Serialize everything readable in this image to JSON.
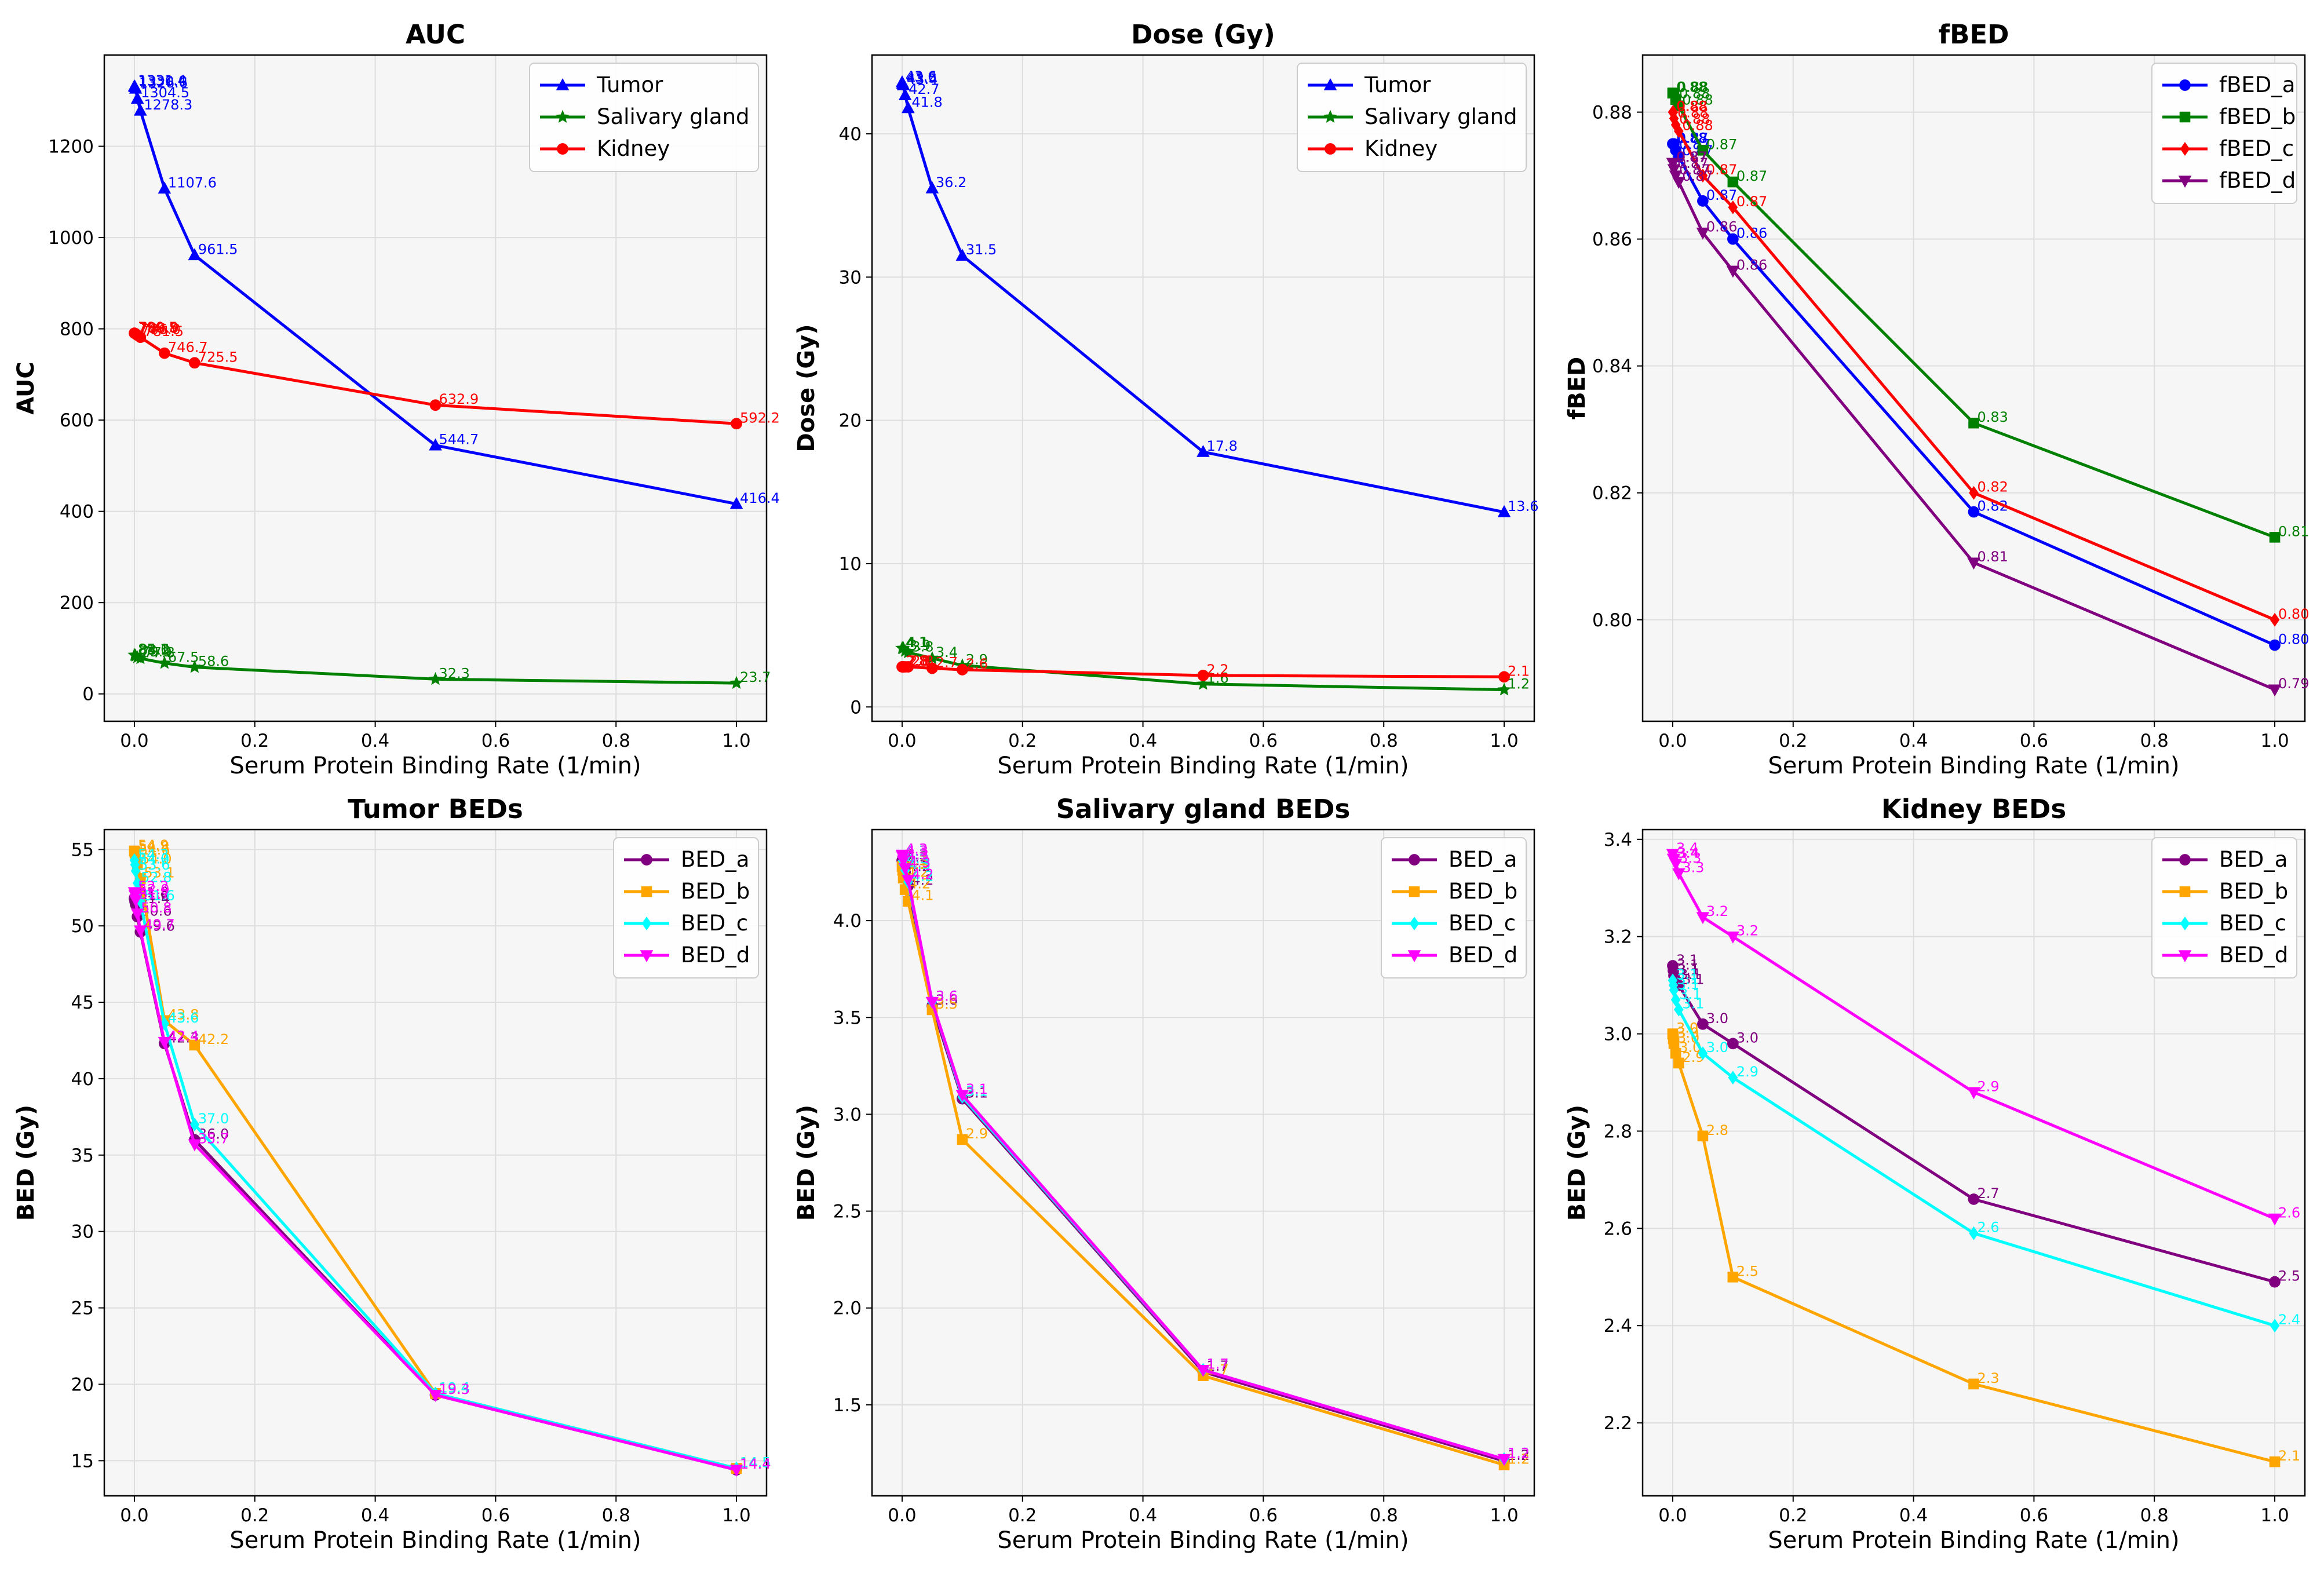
{
  "chart_data": [
    {
      "type": "line",
      "title": "AUC",
      "xlabel": "Serum Protein Binding Rate (1/min)",
      "ylabel": "AUC",
      "xlim": [
        -0.05,
        1.05
      ],
      "ylim": [
        -60,
        1400
      ],
      "xticks": [
        0.0,
        0.2,
        0.4,
        0.6,
        0.8,
        1.0
      ],
      "xtick_labels": [
        "0.0",
        "0.2",
        "0.4",
        "0.6",
        "0.8",
        "1.0"
      ],
      "yticks": [
        0,
        200,
        400,
        600,
        800,
        1000,
        1200
      ],
      "ytick_labels": [
        "0",
        "200",
        "400",
        "600",
        "800",
        "1000",
        "1200"
      ],
      "grid": true,
      "legend": "top-right",
      "x": [
        0.0,
        0.001,
        0.002,
        0.005,
        0.01,
        0.05,
        0.1,
        0.5,
        1.0
      ],
      "series": [
        {
          "name": "Tumor",
          "color": "#0000ff",
          "marker": "triangle-up",
          "values": [
            1331.4,
            1330.0,
            1326.6,
            1304.5,
            1278.3,
            1107.6,
            961.5,
            544.7,
            416.4
          ],
          "labels": [
            "1331.4",
            "1330.0",
            "1326.6",
            "1304.5",
            "1278.3",
            "1107.6",
            "961.5",
            "544.7",
            "416.4"
          ]
        },
        {
          "name": "Salivary gland",
          "color": "#008000",
          "marker": "star",
          "values": [
            85.1,
            84.6,
            83.2,
            79.9,
            77.8,
            67.5,
            58.6,
            32.3,
            23.7
          ],
          "labels": [
            "85.1",
            "84.6",
            "83.2",
            "79.9",
            "77.8",
            "67.5",
            "58.6",
            "32.3",
            "23.7"
          ]
        },
        {
          "name": "Kidney",
          "color": "#ff0000",
          "marker": "circle",
          "values": [
            790.5,
            789.8,
            788.9,
            786.0,
            781.5,
            746.7,
            725.5,
            632.9,
            592.2
          ],
          "labels": [
            "790.5",
            "789.8",
            "788.9",
            "786.0",
            "781.5",
            "746.7",
            "725.5",
            "632.9",
            "592.2"
          ]
        }
      ]
    },
    {
      "type": "line",
      "title": "Dose (Gy)",
      "xlabel": "Serum Protein Binding Rate (1/min)",
      "ylabel": "Dose (Gy)",
      "xlim": [
        -0.05,
        1.05
      ],
      "ylim": [
        -1,
        45.5
      ],
      "xticks": [
        0.0,
        0.2,
        0.4,
        0.6,
        0.8,
        1.0
      ],
      "xtick_labels": [
        "0.0",
        "0.2",
        "0.4",
        "0.6",
        "0.8",
        "1.0"
      ],
      "yticks": [
        0,
        10,
        20,
        30,
        40
      ],
      "ytick_labels": [
        "0",
        "10",
        "20",
        "30",
        "40"
      ],
      "grid": true,
      "legend": "top-right",
      "x": [
        0.0,
        0.001,
        0.002,
        0.005,
        0.01,
        0.05,
        0.1,
        0.5,
        1.0
      ],
      "series": [
        {
          "name": "Tumor",
          "color": "#0000ff",
          "marker": "triangle-up",
          "values": [
            43.6,
            43.5,
            43.4,
            42.7,
            41.8,
            36.2,
            31.5,
            17.8,
            13.6
          ],
          "labels": [
            "43.6",
            "43.5",
            "43.4",
            "42.7",
            "41.8",
            "36.2",
            "31.5",
            "17.8",
            "13.6"
          ]
        },
        {
          "name": "Salivary gland",
          "color": "#008000",
          "marker": "star",
          "values": [
            4.1,
            4.1,
            4.1,
            3.9,
            3.8,
            3.4,
            2.9,
            1.6,
            1.2
          ],
          "labels": [
            "4.1",
            "4.1",
            "4.1",
            "3.9",
            "3.8",
            "3.4",
            "2.9",
            "1.6",
            "1.2"
          ]
        },
        {
          "name": "Kidney",
          "color": "#ff0000",
          "marker": "circle",
          "values": [
            2.8,
            2.8,
            2.8,
            2.8,
            2.8,
            2.7,
            2.6,
            2.2,
            2.1
          ],
          "labels": [
            "2.8",
            "2.8",
            "2.8",
            "2.8",
            "2.8",
            "2.7",
            "2.6",
            "2.2",
            "2.1"
          ]
        }
      ]
    },
    {
      "type": "line",
      "title": "fBED",
      "xlabel": "Serum Protein Binding Rate (1/min)",
      "ylabel": "fBED",
      "xlim": [
        -0.05,
        1.05
      ],
      "ylim": [
        0.784,
        0.889
      ],
      "xticks": [
        0.0,
        0.2,
        0.4,
        0.6,
        0.8,
        1.0
      ],
      "xtick_labels": [
        "0.0",
        "0.2",
        "0.4",
        "0.6",
        "0.8",
        "1.0"
      ],
      "yticks": [
        0.8,
        0.82,
        0.84,
        0.86,
        0.88
      ],
      "ytick_labels": [
        "0.80",
        "0.82",
        "0.84",
        "0.86",
        "0.88"
      ],
      "grid": true,
      "legend": "top-right",
      "x": [
        0.0,
        0.001,
        0.002,
        0.005,
        0.01,
        0.05,
        0.1,
        0.5,
        1.0
      ],
      "series": [
        {
          "name": "fBED_a",
          "color": "#0000ff",
          "marker": "circle",
          "values": [
            0.875,
            0.875,
            0.875,
            0.874,
            0.873,
            0.866,
            0.86,
            0.817,
            0.796
          ],
          "labels": [
            "0.88",
            "0.88",
            "0.87",
            "0.87",
            "0.87",
            "0.87",
            "0.86",
            "0.82",
            "0.80"
          ]
        },
        {
          "name": "fBED_b",
          "color": "#008000",
          "marker": "square",
          "values": [
            0.883,
            0.883,
            0.883,
            0.882,
            0.881,
            0.874,
            0.869,
            0.831,
            0.813
          ],
          "labels": [
            "0.88",
            "0.88",
            "0.88",
            "0.88",
            "0.88",
            "0.87",
            "0.87",
            "0.83",
            "0.81"
          ]
        },
        {
          "name": "fBED_c",
          "color": "#ff0000",
          "marker": "diamond",
          "values": [
            0.88,
            0.88,
            0.879,
            0.878,
            0.877,
            0.87,
            0.865,
            0.82,
            0.8
          ],
          "labels": [
            "0.88",
            "0.88",
            "0.88",
            "0.88",
            "0.88",
            "0.87",
            "0.87",
            "0.82",
            "0.80"
          ]
        },
        {
          "name": "fBED_d",
          "color": "#800080",
          "marker": "triangle-down",
          "values": [
            0.872,
            0.872,
            0.871,
            0.87,
            0.869,
            0.861,
            0.855,
            0.809,
            0.789
          ],
          "labels": [
            "0.87",
            "0.87",
            "0.87",
            "0.87",
            "0.87",
            "0.86",
            "0.86",
            "0.81",
            "0.79"
          ]
        }
      ]
    },
    {
      "type": "line",
      "title": "Tumor BEDs",
      "xlabel": "Serum Protein Binding Rate (1/min)",
      "ylabel": "BED (Gy)",
      "xlim": [
        -0.05,
        1.05
      ],
      "ylim": [
        12.7,
        56.3
      ],
      "xticks": [
        0.0,
        0.2,
        0.4,
        0.6,
        0.8,
        1.0
      ],
      "xtick_labels": [
        "0.0",
        "0.2",
        "0.4",
        "0.6",
        "0.8",
        "1.0"
      ],
      "yticks": [
        15,
        20,
        25,
        30,
        35,
        40,
        45,
        50,
        55
      ],
      "ytick_labels": [
        "15",
        "20",
        "25",
        "30",
        "35",
        "40",
        "45",
        "50",
        "55"
      ],
      "grid": true,
      "legend": "top-right",
      "x": [
        0.0,
        0.001,
        0.002,
        0.005,
        0.01,
        0.05,
        0.1,
        0.5,
        1.0
      ],
      "series": [
        {
          "name": "BED_a",
          "color": "#800080",
          "marker": "circle",
          "values": [
            51.8,
            51.6,
            51.4,
            50.6,
            49.6,
            42.3,
            36.0,
            19.3,
            14.4
          ],
          "labels": [
            "51.8",
            "51.6",
            "51.4",
            "50.6",
            "49.6",
            "42.3",
            "36.0",
            "19.3",
            "14.4"
          ]
        },
        {
          "name": "BED_b",
          "color": "#ffa500",
          "marker": "square",
          "values": [
            54.9,
            54.8,
            54.6,
            54.0,
            53.1,
            43.8,
            42.2,
            19.4,
            14.5
          ],
          "labels": [
            "54.9",
            "54.8",
            "54.6",
            "54.0",
            "53.1",
            "43.8",
            "42.2",
            "19.4",
            "14.5"
          ]
        },
        {
          "name": "BED_c",
          "color": "#00ffff",
          "marker": "diamond",
          "values": [
            54.3,
            54.0,
            53.6,
            52.8,
            51.6,
            43.6,
            37.0,
            19.4,
            14.5
          ],
          "labels": [
            "54.3",
            "54.0",
            "53.6",
            "52.8",
            "51.6",
            "43.6",
            "37.0",
            "19.4",
            "14.5"
          ]
        },
        {
          "name": "BED_d",
          "color": "#ff00ff",
          "marker": "triangle-down",
          "values": [
            52.2,
            52.0,
            51.7,
            50.8,
            49.7,
            42.4,
            35.7,
            19.3,
            14.4
          ],
          "labels": [
            "52.2",
            "52.0",
            "51.7",
            "50.8",
            "49.7",
            "42.4",
            "35.7",
            "19.3",
            "14.4"
          ]
        }
      ]
    },
    {
      "type": "line",
      "title": "Salivary gland BEDs",
      "xlabel": "Serum Protein Binding Rate (1/min)",
      "ylabel": "BED (Gy)",
      "xlim": [
        -0.05,
        1.05
      ],
      "ylim": [
        1.03,
        4.47
      ],
      "xticks": [
        0.0,
        0.2,
        0.4,
        0.6,
        0.8,
        1.0
      ],
      "xtick_labels": [
        "0.0",
        "0.2",
        "0.4",
        "0.6",
        "0.8",
        "1.0"
      ],
      "yticks": [
        1.5,
        2.0,
        2.5,
        3.0,
        3.5,
        4.0
      ],
      "ytick_labels": [
        "1.5",
        "2.0",
        "2.5",
        "3.0",
        "3.5",
        "4.0"
      ],
      "grid": true,
      "legend": "top-right",
      "x": [
        0.0,
        0.001,
        0.002,
        0.005,
        0.01,
        0.05,
        0.1,
        0.5,
        1.0
      ],
      "series": [
        {
          "name": "BED_a",
          "color": "#800080",
          "marker": "circle",
          "values": [
            4.31,
            4.3,
            4.28,
            4.25,
            4.18,
            3.56,
            3.08,
            1.67,
            1.21
          ],
          "labels": [
            "4.3",
            "4.3",
            "4.3",
            "4.2",
            "4.2",
            "3.6",
            "3.1",
            "1.7",
            "1.2"
          ]
        },
        {
          "name": "BED_b",
          "color": "#ffa500",
          "marker": "square",
          "values": [
            4.28,
            4.26,
            4.22,
            4.16,
            4.1,
            3.54,
            2.87,
            1.65,
            1.19
          ],
          "labels": [
            "4.3",
            "4.3",
            "4.2",
            "4.2",
            "4.1",
            "3.5",
            "2.9",
            "1.7",
            "1.2"
          ]
        },
        {
          "name": "BED_c",
          "color": "#00ffff",
          "marker": "diamond",
          "values": [
            4.33,
            4.31,
            4.29,
            4.26,
            4.2,
            3.58,
            3.09,
            1.68,
            1.22
          ],
          "labels": [
            "4.3",
            "4.3",
            "4.3",
            "4.3",
            "4.2",
            "3.6",
            "3.1",
            "1.7",
            "1.2"
          ]
        },
        {
          "name": "BED_d",
          "color": "#ff00ff",
          "marker": "triangle-down",
          "values": [
            4.34,
            4.33,
            4.31,
            4.27,
            4.21,
            3.58,
            3.1,
            1.68,
            1.22
          ],
          "labels": [
            "4.3",
            "4.3",
            "4.3",
            "4.3",
            "4.2",
            "3.6",
            "3.1",
            "1.7",
            "1.2"
          ]
        }
      ]
    },
    {
      "type": "line",
      "title": "Kidney BEDs",
      "xlabel": "Serum Protein Binding Rate (1/min)",
      "ylabel": "BED (Gy)",
      "xlim": [
        -0.05,
        1.05
      ],
      "ylim": [
        2.05,
        3.42
      ],
      "xticks": [
        0.0,
        0.2,
        0.4,
        0.6,
        0.8,
        1.0
      ],
      "xtick_labels": [
        "0.0",
        "0.2",
        "0.4",
        "0.6",
        "0.8",
        "1.0"
      ],
      "yticks": [
        2.2,
        2.4,
        2.6,
        2.8,
        3.0,
        3.2,
        3.4
      ],
      "ytick_labels": [
        "2.2",
        "2.4",
        "2.6",
        "2.8",
        "3.0",
        "3.2",
        "3.4"
      ],
      "grid": true,
      "legend": "top-right",
      "x": [
        0.0,
        0.001,
        0.002,
        0.005,
        0.01,
        0.05,
        0.1,
        0.5,
        1.0
      ],
      "series": [
        {
          "name": "BED_a",
          "color": "#800080",
          "marker": "circle",
          "values": [
            3.14,
            3.13,
            3.12,
            3.11,
            3.1,
            3.02,
            2.98,
            2.66,
            2.49
          ],
          "labels": [
            "3.1",
            "3.1",
            "3.1",
            "3.1",
            "3.1",
            "3.0",
            "3.0",
            "2.7",
            "2.5"
          ]
        },
        {
          "name": "BED_b",
          "color": "#ffa500",
          "marker": "square",
          "values": [
            3.0,
            2.99,
            2.98,
            2.96,
            2.94,
            2.79,
            2.5,
            2.28,
            2.12
          ],
          "labels": [
            "3.0",
            "3.0",
            "3.0",
            "3.0",
            "2.9",
            "2.8",
            "2.5",
            "2.3",
            "2.1"
          ]
        },
        {
          "name": "BED_c",
          "color": "#00ffff",
          "marker": "diamond",
          "values": [
            3.11,
            3.1,
            3.09,
            3.07,
            3.05,
            2.96,
            2.91,
            2.59,
            2.4
          ],
          "labels": [
            "3.1",
            "3.1",
            "3.1",
            "3.1",
            "3.1",
            "3.0",
            "2.9",
            "2.6",
            "2.4"
          ]
        },
        {
          "name": "BED_d",
          "color": "#ff00ff",
          "marker": "triangle-down",
          "values": [
            3.37,
            3.36,
            3.36,
            3.35,
            3.33,
            3.24,
            3.2,
            2.88,
            2.62
          ],
          "labels": [
            "3.4",
            "3.4",
            "3.4",
            "3.3",
            "3.3",
            "3.2",
            "3.2",
            "2.9",
            "2.6"
          ]
        }
      ]
    }
  ]
}
